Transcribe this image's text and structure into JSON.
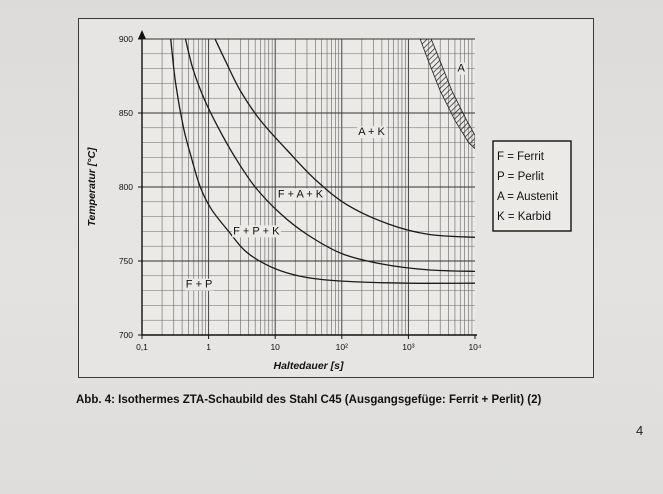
{
  "chart_data": {
    "type": "line",
    "xscale": "log",
    "xlim": [
      0.1,
      10000
    ],
    "ylim": [
      700,
      900
    ],
    "xlabel": "Haltedauer [s]",
    "ylabel": "Temperatur [°C]",
    "x_ticks": [
      {
        "value": 0.1,
        "label": "0,1"
      },
      {
        "value": 1,
        "label": "1"
      },
      {
        "value": 10,
        "label": "10"
      },
      {
        "value": 100,
        "label": "10²"
      },
      {
        "value": 1000,
        "label": "10³"
      },
      {
        "value": 10000,
        "label": "10⁴"
      }
    ],
    "y_ticks": [
      {
        "value": 700,
        "label": "700"
      },
      {
        "value": 750,
        "label": "750"
      },
      {
        "value": 800,
        "label": "800"
      },
      {
        "value": 850,
        "label": "850"
      },
      {
        "value": 900,
        "label": "900"
      }
    ],
    "grid": true,
    "series": [
      {
        "points": [
          [
            0.27,
            900
          ],
          [
            0.32,
            870
          ],
          [
            0.42,
            840
          ],
          [
            0.55,
            820
          ],
          [
            0.75,
            800
          ],
          [
            1.1,
            785
          ],
          [
            2.0,
            770
          ],
          [
            3.5,
            757
          ],
          [
            7,
            748
          ],
          [
            15,
            742
          ],
          [
            40,
            738
          ],
          [
            150,
            736
          ],
          [
            1000,
            735
          ],
          [
            10000,
            735
          ]
        ]
      },
      {
        "points": [
          [
            0.45,
            900
          ],
          [
            0.58,
            880
          ],
          [
            0.85,
            860
          ],
          [
            1.4,
            840
          ],
          [
            2.5,
            820
          ],
          [
            5,
            800
          ],
          [
            12,
            782
          ],
          [
            30,
            768
          ],
          [
            100,
            755
          ],
          [
            400,
            748
          ],
          [
            2000,
            744
          ],
          [
            10000,
            743
          ]
        ]
      },
      {
        "points": [
          [
            1.25,
            900
          ],
          [
            1.8,
            885
          ],
          [
            3,
            865
          ],
          [
            6,
            845
          ],
          [
            15,
            825
          ],
          [
            40,
            805
          ],
          [
            120,
            788
          ],
          [
            500,
            775
          ],
          [
            2000,
            768
          ],
          [
            10000,
            766
          ]
        ]
      }
    ],
    "hatched_band": {
      "upper": [
        [
          2200,
          900
        ],
        [
          3000,
          885
        ],
        [
          4500,
          865
        ],
        [
          7500,
          845
        ],
        [
          10000,
          835
        ]
      ],
      "lower": [
        [
          1500,
          900
        ],
        [
          2000,
          885
        ],
        [
          3000,
          865
        ],
        [
          5000,
          845
        ],
        [
          8000,
          830
        ],
        [
          10000,
          826
        ]
      ]
    },
    "region_labels": [
      {
        "text": "A",
        "x": 6200,
        "y": 878
      },
      {
        "text": "A + K",
        "x": 280,
        "y": 835
      },
      {
        "text": "F + A + K",
        "x": 24,
        "y": 793
      },
      {
        "text": "F + P + K",
        "x": 5.2,
        "y": 768
      },
      {
        "text": "F + P",
        "x": 0.72,
        "y": 732
      }
    ],
    "legend": {
      "placement": "right",
      "entries": [
        "F = Ferrit",
        "P = Perlit",
        "A = Austenit",
        "K = Karbid"
      ]
    }
  },
  "caption": "Abb. 4: Isothermes ZTA-Schaubild des Stahl C45 (Ausgangsgefüge: Ferrit + Perlit) (2)",
  "page_number": "4"
}
